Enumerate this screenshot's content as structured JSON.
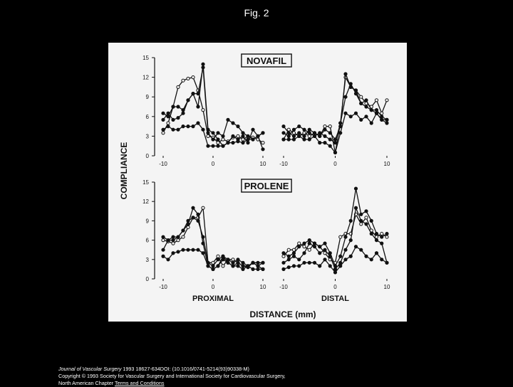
{
  "page": {
    "title": "Fig. 2",
    "footer": {
      "journal": "Journal of Vascular Surgery",
      "citation": " 1993 18627-634DOI: (10.1016/0741-5214(93)90338-M)",
      "copyright": "Copyright © 1993 Society for Vascular Surgery and International Society for Cardiovascular Surgery,",
      "publisher": "North American Chapter",
      "terms_link": "Terms and Conditions"
    }
  },
  "colors": {
    "background": "#000000",
    "panel": "#f4f4f4",
    "ink": "#111111"
  },
  "chart_data": [
    {
      "type": "line",
      "title": "NOVAFIL",
      "ylabel": "COMPLIANCE",
      "ylim": [
        0,
        15
      ],
      "yticks": [
        0,
        3,
        6,
        9,
        12,
        15
      ],
      "xlim": [
        -10,
        10
      ],
      "panels": [
        {
          "name": "proximal",
          "xticks": [
            -10,
            0,
            10
          ],
          "series": [
            {
              "marker": "open",
              "x": [
                -10,
                -9,
                -8,
                -7,
                -6,
                -5,
                -4,
                -3,
                -2,
                -1,
                0,
                1,
                2,
                3,
                4,
                5,
                6,
                7,
                8,
                9,
                10
              ],
              "y": [
                3.5,
                5.0,
                7.5,
                10.5,
                11.5,
                11.8,
                12.0,
                10.0,
                7.0,
                3.0,
                2.8,
                2.0,
                2.5,
                2.2,
                2.8,
                3.0,
                2.5,
                3.0,
                2.8,
                2.5,
                2.0
              ]
            },
            {
              "marker": "filled",
              "x": [
                -10,
                -9,
                -8,
                -7,
                -6,
                -5,
                -4,
                -3,
                -2,
                -1,
                0,
                1,
                2,
                3,
                4,
                5,
                6,
                7,
                8,
                9,
                10
              ],
              "y": [
                6.5,
                6.0,
                7.5,
                7.5,
                7.0,
                8.5,
                9.5,
                9.5,
                13.5,
                3.5,
                2.5,
                3.5,
                3.0,
                5.5,
                5.0,
                4.5,
                3.5,
                3.0,
                2.5,
                3.0,
                3.5
              ]
            },
            {
              "marker": "filled",
              "x": [
                -10,
                -9,
                -8,
                -7,
                -6,
                -5,
                -4,
                -3,
                -2,
                -1,
                0,
                1,
                2,
                3,
                4,
                5,
                6,
                7,
                8,
                9,
                10
              ],
              "y": [
                5.5,
                6.5,
                5.5,
                5.8,
                6.5,
                8.5,
                9.5,
                7.5,
                14.0,
                4.0,
                3.5,
                2.5,
                1.5,
                2.0,
                3.0,
                2.5,
                3.0,
                2.0,
                4.0,
                3.0,
                1.0
              ]
            },
            {
              "marker": "filled",
              "x": [
                -10,
                -9,
                -8,
                -7,
                -6,
                -5,
                -4,
                -3,
                -2,
                -1,
                0,
                1,
                2,
                3,
                4,
                5,
                6,
                7,
                8,
                9,
                10
              ],
              "y": [
                4.0,
                4.5,
                4.0,
                4.0,
                4.5,
                4.5,
                4.5,
                5.0,
                4.0,
                1.5,
                1.5,
                1.5,
                1.5,
                2.0,
                2.0,
                2.2,
                2.0,
                2.5,
                2.5,
                3.0,
                3.5
              ]
            }
          ]
        },
        {
          "name": "distal",
          "xticks": [
            -10,
            0,
            10
          ],
          "series": [
            {
              "marker": "open",
              "x": [
                -10,
                -9,
                -8,
                -7,
                -6,
                -5,
                -4,
                -3,
                -2,
                -1,
                0,
                1,
                2,
                3,
                4,
                5,
                6,
                7,
                8,
                9,
                10
              ],
              "y": [
                2.5,
                4.0,
                3.5,
                3.0,
                3.5,
                3.0,
                3.5,
                3.0,
                4.5,
                4.5,
                0.5,
                5.0,
                12.0,
                10.5,
                10.0,
                9.0,
                8.0,
                7.5,
                8.5,
                6.5,
                8.5
              ]
            },
            {
              "marker": "filled",
              "x": [
                -10,
                -9,
                -8,
                -7,
                -6,
                -5,
                -4,
                -3,
                -2,
                -1,
                0,
                1,
                2,
                3,
                4,
                5,
                6,
                7,
                8,
                9,
                10
              ],
              "y": [
                4.5,
                3.5,
                3.0,
                3.5,
                3.0,
                4.0,
                3.5,
                3.0,
                4.0,
                3.5,
                2.5,
                4.5,
                12.5,
                10.5,
                10.0,
                8.0,
                8.5,
                7.0,
                7.0,
                6.0,
                5.5
              ]
            },
            {
              "marker": "filled",
              "x": [
                -10,
                -9,
                -8,
                -7,
                -6,
                -5,
                -4,
                -3,
                -2,
                -1,
                0,
                1,
                2,
                3,
                4,
                5,
                6,
                7,
                8,
                9,
                10
              ],
              "y": [
                3.5,
                3.0,
                4.0,
                4.5,
                4.0,
                3.5,
                3.0,
                3.5,
                3.0,
                2.5,
                2.0,
                5.0,
                9.0,
                11.0,
                9.5,
                8.0,
                7.5,
                7.0,
                6.5,
                5.5,
                5.5
              ]
            },
            {
              "marker": "filled",
              "x": [
                -10,
                -9,
                -8,
                -7,
                -6,
                -5,
                -4,
                -3,
                -2,
                -1,
                0,
                1,
                2,
                3,
                4,
                5,
                6,
                7,
                8,
                9,
                10
              ],
              "y": [
                2.5,
                2.5,
                2.5,
                3.0,
                2.5,
                2.5,
                3.0,
                2.0,
                2.0,
                1.5,
                0.5,
                3.5,
                6.5,
                6.0,
                6.5,
                5.5,
                6.0,
                5.0,
                6.5,
                5.5,
                5.0
              ]
            }
          ]
        }
      ]
    },
    {
      "type": "line",
      "title": "PROLENE",
      "ylabel": "COMPLIANCE",
      "ylim": [
        0,
        15
      ],
      "yticks": [
        0,
        3,
        6,
        9,
        12,
        15
      ],
      "xlim": [
        -10,
        10
      ],
      "panels": [
        {
          "name": "proximal",
          "xlabel": "PROXIMAL",
          "xticks": [
            -10,
            0,
            10
          ],
          "series": [
            {
              "marker": "open",
              "x": [
                -10,
                -9,
                -8,
                -7,
                -6,
                -5,
                -4,
                -3,
                -2,
                -1,
                0,
                1,
                2,
                3,
                4,
                5,
                6,
                7,
                8,
                9,
                10
              ],
              "y": [
                6.0,
                5.8,
                5.5,
                6.0,
                6.5,
                8.0,
                9.5,
                9.5,
                11.0,
                2.5,
                2.5,
                3.5,
                2.0,
                3.0,
                3.0,
                2.5,
                2.0,
                2.0,
                2.5,
                2.0,
                2.5
              ]
            },
            {
              "marker": "filled",
              "x": [
                -10,
                -9,
                -8,
                -7,
                -6,
                -5,
                -4,
                -3,
                -2,
                -1,
                0,
                1,
                2,
                3,
                4,
                5,
                6,
                7,
                8,
                9,
                10
              ],
              "y": [
                6.5,
                6.0,
                6.5,
                6.5,
                7.5,
                8.5,
                11.0,
                10.0,
                5.5,
                2.0,
                1.5,
                2.0,
                3.5,
                2.5,
                2.0,
                2.5,
                2.0,
                1.8,
                2.5,
                2.5,
                2.5
              ]
            },
            {
              "marker": "filled",
              "x": [
                -10,
                -9,
                -8,
                -7,
                -6,
                -5,
                -4,
                -3,
                -2,
                -1,
                0,
                1,
                2,
                3,
                4,
                5,
                6,
                7,
                8,
                9,
                10
              ],
              "y": [
                4.5,
                6.0,
                6.0,
                6.5,
                7.5,
                9.0,
                9.5,
                9.0,
                6.5,
                2.5,
                2.0,
                3.0,
                3.5,
                3.0,
                2.5,
                3.0,
                2.5,
                2.0,
                2.5,
                2.0,
                1.5
              ]
            },
            {
              "marker": "filled",
              "x": [
                -10,
                -9,
                -8,
                -7,
                -6,
                -5,
                -4,
                -3,
                -2,
                -1,
                0,
                1,
                2,
                3,
                4,
                5,
                6,
                7,
                8,
                9,
                10
              ],
              "y": [
                3.5,
                3.0,
                4.0,
                4.2,
                4.5,
                4.5,
                4.5,
                4.5,
                4.0,
                2.0,
                1.5,
                2.0,
                3.0,
                2.5,
                2.0,
                2.0,
                1.5,
                2.0,
                1.5,
                1.5,
                1.5
              ]
            }
          ]
        },
        {
          "name": "distal",
          "xlabel": "DISTAL",
          "xticks": [
            -10,
            0,
            10
          ],
          "series": [
            {
              "marker": "open",
              "x": [
                -10,
                -9,
                -8,
                -7,
                -6,
                -5,
                -4,
                -3,
                -2,
                -1,
                0,
                1,
                2,
                3,
                4,
                5,
                6,
                7,
                8,
                9,
                10
              ],
              "y": [
                3.5,
                4.5,
                4.5,
                5.5,
                5.0,
                4.5,
                5.5,
                5.0,
                4.0,
                3.0,
                2.5,
                6.5,
                7.0,
                7.0,
                10.0,
                8.5,
                9.5,
                7.5,
                6.5,
                7.0,
                6.5
              ]
            },
            {
              "marker": "filled",
              "x": [
                -10,
                -9,
                -8,
                -7,
                -6,
                -5,
                -4,
                -3,
                -2,
                -1,
                0,
                1,
                2,
                3,
                4,
                5,
                6,
                7,
                8,
                9,
                10
              ],
              "y": [
                4.0,
                3.5,
                4.0,
                5.0,
                5.5,
                6.0,
                5.5,
                5.0,
                5.5,
                4.0,
                2.0,
                3.5,
                6.5,
                9.0,
                14.0,
                10.0,
                10.5,
                9.0,
                7.0,
                6.5,
                7.0
              ]
            },
            {
              "marker": "filled",
              "x": [
                -10,
                -9,
                -8,
                -7,
                -6,
                -5,
                -4,
                -3,
                -2,
                -1,
                0,
                1,
                2,
                3,
                4,
                5,
                6,
                7,
                8,
                9,
                10
              ],
              "y": [
                2.5,
                3.0,
                3.5,
                3.0,
                4.0,
                5.5,
                5.0,
                4.0,
                4.5,
                3.5,
                1.5,
                2.5,
                4.5,
                6.0,
                11.0,
                9.0,
                8.5,
                7.0,
                6.0,
                5.5,
                2.5
              ]
            },
            {
              "marker": "filled",
              "x": [
                -10,
                -9,
                -8,
                -7,
                -6,
                -5,
                -4,
                -3,
                -2,
                -1,
                0,
                1,
                2,
                3,
                4,
                5,
                6,
                7,
                8,
                9,
                10
              ],
              "y": [
                1.5,
                1.8,
                2.0,
                2.0,
                2.5,
                2.5,
                2.5,
                2.0,
                3.0,
                2.0,
                1.0,
                2.0,
                3.0,
                3.5,
                5.0,
                4.5,
                3.5,
                3.0,
                4.0,
                3.0,
                2.5
              ]
            }
          ]
        }
      ]
    }
  ],
  "shared_axes": {
    "xlabel": "DISTANCE (mm)"
  }
}
